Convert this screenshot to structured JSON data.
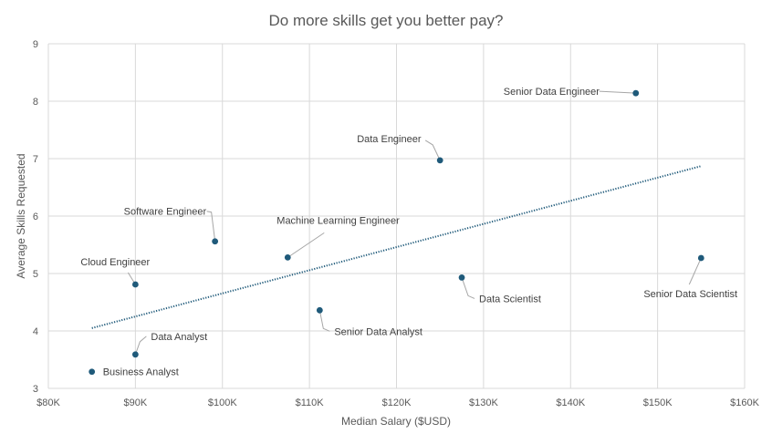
{
  "chart_data": {
    "type": "scatter",
    "title": "Do more skills get you better pay?",
    "xlabel": "Median Salary ($USD)",
    "ylabel": "Average Skills Requested",
    "xlim": [
      80000,
      160000
    ],
    "ylim": [
      3,
      9
    ],
    "x_ticks": [
      80000,
      90000,
      100000,
      110000,
      120000,
      130000,
      140000,
      150000,
      160000
    ],
    "x_tick_labels": [
      "$80K",
      "$90K",
      "$100K",
      "$110K",
      "$120K",
      "$130K",
      "$140K",
      "$150K",
      "$160K"
    ],
    "y_ticks": [
      3,
      4,
      5,
      6,
      7,
      8,
      9
    ],
    "y_tick_labels": [
      "3",
      "4",
      "5",
      "6",
      "7",
      "8",
      "9"
    ],
    "grid": true,
    "legend": "none",
    "marker_color": "#1f5a7a",
    "trendline": {
      "type": "linear",
      "style": "dotted",
      "color": "#1f5a7a",
      "x_range": [
        85000,
        155000
      ],
      "y_range": [
        4.05,
        6.87
      ]
    },
    "points": [
      {
        "label": "Business Analyst",
        "x": 85000,
        "y": 3.29
      },
      {
        "label": "Data Analyst",
        "x": 90000,
        "y": 3.59
      },
      {
        "label": "Cloud Engineer",
        "x": 90000,
        "y": 4.81
      },
      {
        "label": "Software Engineer",
        "x": 99150,
        "y": 5.56
      },
      {
        "label": "Machine Learning Engineer",
        "x": 107500,
        "y": 5.28
      },
      {
        "label": "Senior Data Analyst",
        "x": 111175,
        "y": 4.36
      },
      {
        "label": "Data Engineer",
        "x": 125000,
        "y": 6.97
      },
      {
        "label": "Data Scientist",
        "x": 127500,
        "y": 4.93
      },
      {
        "label": "Senior Data Engineer",
        "x": 147500,
        "y": 8.14
      },
      {
        "label": "Senior Data Scientist",
        "x": 155000,
        "y": 5.27
      }
    ]
  }
}
